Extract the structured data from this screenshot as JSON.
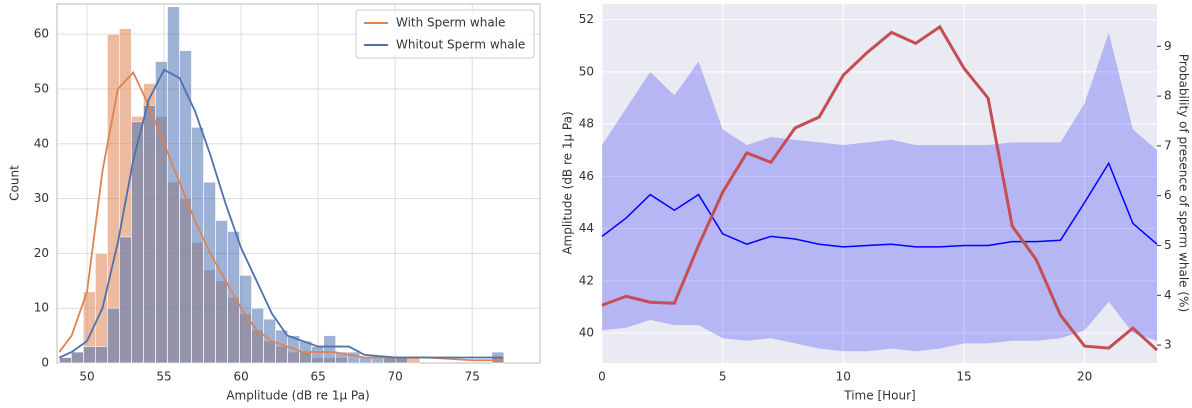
{
  "chart_data": [
    {
      "type": "histogram",
      "xlabel": "Amplitude (dB re 1μ Pa)",
      "ylabel": "Count",
      "bins": [
        48.2,
        48.98,
        49.76,
        50.54,
        51.32,
        52.1,
        52.88,
        53.66,
        54.44,
        55.22,
        56.0,
        56.78,
        57.56,
        58.34,
        59.12,
        59.9,
        60.68,
        61.46,
        62.24,
        63.02,
        63.8,
        64.58,
        65.36,
        66.14,
        66.92,
        67.7,
        68.48,
        69.26,
        70.04,
        70.82,
        71.6,
        72.38,
        73.16,
        73.94,
        74.72,
        75.5,
        76.28,
        77.06
      ],
      "series": [
        {
          "name": "With Sperm whale",
          "color": "#dd8452",
          "values": [
            1,
            2,
            13,
            20,
            60,
            61,
            45,
            51,
            45,
            33,
            30,
            22,
            17,
            15,
            12,
            9,
            6,
            4,
            3,
            2,
            2,
            1,
            1,
            1,
            0,
            0,
            0,
            1,
            1,
            1,
            0,
            0,
            0,
            0,
            0,
            0,
            1
          ],
          "kde_x": [
            48.2,
            49,
            50,
            51,
            52,
            53,
            54,
            55,
            56,
            57,
            58,
            59,
            60,
            61,
            62,
            63,
            64,
            66,
            68,
            70,
            72,
            75,
            77
          ],
          "kde_y": [
            2,
            5,
            13,
            35,
            50,
            53,
            47,
            40,
            33,
            26,
            20,
            15,
            10,
            6,
            4,
            3,
            2,
            2,
            1,
            1,
            1,
            0.5,
            0.5
          ]
        },
        {
          "name": "Whitout Sperm whale",
          "color": "#4c72b0",
          "values": [
            1,
            2,
            3,
            3,
            10,
            23,
            44,
            47,
            55,
            65,
            57,
            43,
            33,
            26,
            24,
            16,
            10,
            8,
            6,
            5,
            4,
            3,
            5,
            2,
            2,
            1,
            1,
            1,
            1,
            0,
            0,
            0,
            0,
            0,
            0,
            0,
            2
          ],
          "kde_x": [
            48.2,
            49,
            50,
            51,
            52,
            53,
            54,
            55,
            56,
            57,
            58,
            59,
            60,
            61,
            62,
            63,
            64,
            65,
            66,
            67,
            68,
            70,
            72,
            75,
            77
          ],
          "kde_y": [
            1,
            2,
            4,
            10,
            22,
            37,
            48,
            53.5,
            52,
            46,
            38,
            29,
            21,
            15,
            9,
            5,
            4,
            3,
            3,
            3,
            1.5,
            1,
            1,
            1,
            1
          ]
        }
      ],
      "xlim": [
        48.05,
        79.4
      ],
      "xticks": [
        50,
        55,
        60,
        65,
        70,
        75
      ],
      "ylim": [
        0,
        65.5
      ],
      "yticks": [
        0,
        10,
        20,
        30,
        40,
        50,
        60
      ],
      "grid": true,
      "legend": "upper right"
    },
    {
      "type": "line",
      "xlabel": "Time [Hour]",
      "ylabel": "Amplitude (dB re 1μ Pa)",
      "y2label": "Probability of presence of sperm whale (%)",
      "x": [
        0,
        1,
        2,
        3,
        4,
        5,
        6,
        7,
        8,
        9,
        10,
        11,
        12,
        13,
        14,
        15,
        16,
        17,
        18,
        19,
        20,
        21,
        22,
        23
      ],
      "series": [
        {
          "color": "#0000ff",
          "values": [
            43.7,
            44.4,
            45.3,
            44.7,
            45.3,
            43.8,
            43.4,
            43.7,
            43.6,
            43.4,
            43.3,
            43.35,
            43.4,
            43.3,
            43.3,
            43.35,
            43.35,
            43.5,
            43.5,
            43.55,
            45.0,
            46.5,
            44.2,
            43.4
          ],
          "band_upper": [
            47.2,
            48.6,
            50.0,
            49.1,
            50.4,
            47.8,
            47.2,
            47.5,
            47.4,
            47.3,
            47.2,
            47.3,
            47.4,
            47.2,
            47.2,
            47.2,
            47.2,
            47.3,
            47.3,
            47.3,
            48.8,
            51.5,
            47.8,
            47.0
          ],
          "band_lower": [
            40.1,
            40.2,
            40.5,
            40.3,
            40.3,
            39.8,
            39.7,
            39.8,
            39.6,
            39.4,
            39.3,
            39.3,
            39.4,
            39.3,
            39.4,
            39.6,
            39.6,
            39.7,
            39.7,
            39.8,
            40.1,
            41.2,
            40.0,
            39.7
          ]
        },
        {
          "color": "#c44e52",
          "axis": "y2",
          "values": [
            3.8,
            3.98,
            3.86,
            3.84,
            5.0,
            6.07,
            6.86,
            6.67,
            7.36,
            7.58,
            8.42,
            8.88,
            9.28,
            9.06,
            9.39,
            8.56,
            7.96,
            5.39,
            4.71,
            3.6,
            2.98,
            2.94,
            3.34,
            2.9
          ]
        }
      ],
      "xlim": [
        0,
        23
      ],
      "xticks": [
        0,
        5,
        10,
        15,
        20
      ],
      "ylim": [
        38.85,
        52.6
      ],
      "yticks": [
        40,
        42,
        44,
        46,
        48,
        50,
        52
      ],
      "y2lim": [
        2.64,
        9.85
      ],
      "y2ticks": [
        3,
        4,
        5,
        6,
        7,
        8,
        9
      ],
      "grid": true
    }
  ]
}
